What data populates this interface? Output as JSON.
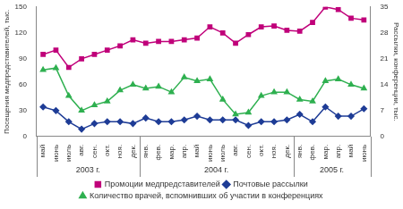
{
  "chart_data": {
    "type": "line",
    "ylabel": "Посещения медпредставителей, тыс.",
    "y2label": "Рассылки, конференции, тыс.",
    "categories": [
      "май",
      "июнь",
      "июль",
      "авг.",
      "сен.",
      "окт.",
      "ноя.",
      "дек.",
      "янв.",
      "фев.",
      "мар.",
      "апр.",
      "май",
      "июнь",
      "июль",
      "авг.",
      "сен.",
      "окт.",
      "ноя.",
      "дек.",
      "янв.",
      "фев.",
      "мар.",
      "апр.",
      "май",
      "июнь"
    ],
    "category_groups": [
      {
        "label": "2003 г.",
        "start": 0,
        "end": 7
      },
      {
        "label": "2004 г.",
        "start": 8,
        "end": 19
      },
      {
        "label": "2005 г.",
        "start": 20,
        "end": 25
      }
    ],
    "series": [
      {
        "name": "Промоции медпредставителей",
        "color": "#c0007a",
        "marker": "square",
        "axis": "y",
        "values": [
          95,
          100,
          80,
          90,
          95,
          100,
          105,
          112,
          108,
          110,
          110,
          112,
          114,
          127,
          120,
          108,
          118,
          127,
          128,
          123,
          122,
          132,
          150,
          147,
          137,
          135
        ]
      },
      {
        "name": "Почтовые рассылки",
        "color": "#1e3c96",
        "marker": "diamond",
        "axis": "y2",
        "values": [
          8,
          7,
          4,
          2,
          3.5,
          4,
          4,
          3.5,
          5,
          4,
          4,
          4.5,
          5.5,
          4.5,
          4.5,
          4.5,
          3,
          4,
          4,
          4.5,
          6,
          4,
          8,
          5.5,
          5.5,
          7.5
        ]
      },
      {
        "name": "Количество врачей, вспомнивших об участии в конференциях",
        "color": "#2fb050",
        "marker": "triangle",
        "axis": "y2",
        "values": [
          18,
          18.5,
          11,
          7,
          8.5,
          9.5,
          12.5,
          14,
          13,
          13.5,
          12,
          16,
          15,
          15.5,
          10,
          6,
          6.5,
          11,
          12,
          12,
          10,
          9.5,
          15,
          15.5,
          14,
          13
        ]
      }
    ],
    "ylim": [
      0,
      150
    ],
    "yticks": [
      0,
      30,
      60,
      90,
      120,
      150
    ],
    "y2lim": [
      0,
      35
    ],
    "y2ticks": [
      0,
      7,
      14,
      21,
      28,
      35
    ],
    "grid": false,
    "legend": "bottom"
  }
}
